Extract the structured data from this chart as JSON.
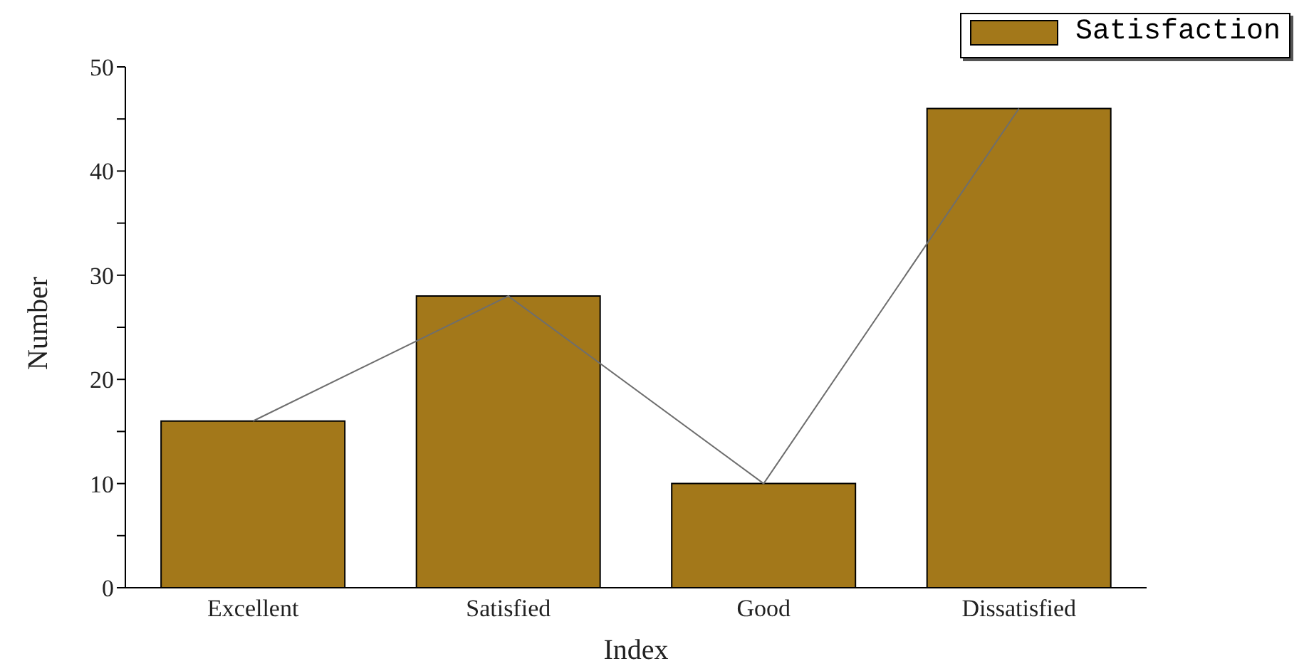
{
  "chart_data": {
    "type": "bar",
    "xlabel": "Index",
    "ylabel": "Number",
    "categories": [
      "Excellent",
      "Satisfied",
      "Good",
      "Dissatisfied"
    ],
    "series": [
      {
        "name": "Satisfaction",
        "color": "#a3781a",
        "values": [
          16,
          28,
          10,
          46
        ]
      },
      {
        "type": "line",
        "color": "#6e6e6e",
        "values": [
          16,
          28,
          10,
          46
        ],
        "marker": "none"
      }
    ],
    "ylim": [
      0,
      50
    ],
    "yticks": [
      0,
      {
        "value": 5,
        "label": null
      },
      10,
      {
        "value": 15,
        "label": null
      },
      20,
      {
        "value": 25,
        "label": null
      },
      30,
      {
        "value": 35,
        "label": null
      },
      40,
      {
        "value": 45,
        "label": null
      },
      50
    ],
    "grid": false,
    "legend": "top right"
  }
}
